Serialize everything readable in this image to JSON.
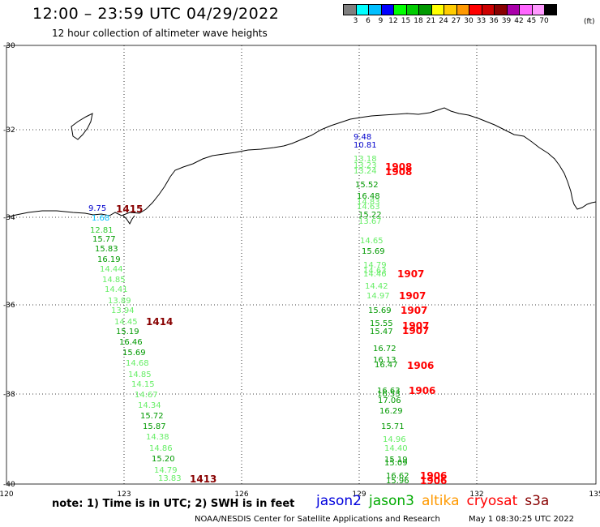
{
  "header": {
    "title": "12:00 – 23:59 UTC 04/29/2022",
    "subtitle": "12 hour collection of altimeter wave heights"
  },
  "color_scale": {
    "colors": [
      "#7f7f7f",
      "#00ffff",
      "#00bfff",
      "#0000ff",
      "#00ff00",
      "#00cc00",
      "#009900",
      "#ffff00",
      "#ffcc00",
      "#ff9900",
      "#ff0000",
      "#cc0000",
      "#880000",
      "#aa00aa",
      "#ff66ff",
      "#ff99ff",
      "#000000"
    ],
    "labels": [
      "3",
      "6",
      "9",
      "12",
      "15",
      "18",
      "21",
      "24",
      "27",
      "30",
      "33",
      "36",
      "39",
      "42",
      "45",
      "70"
    ],
    "unit": "(ft)"
  },
  "axes": {
    "lon_ticks": [
      "120",
      "123",
      "126",
      "129",
      "132",
      "135"
    ],
    "lat_ticks": [
      "-30",
      "-32",
      "-34",
      "-36",
      "-38",
      "-40"
    ]
  },
  "track_west": [
    {
      "text": "9.75",
      "color": "#0000cc"
    },
    {
      "text": "1.68",
      "color": "#00bfff"
    },
    {
      "text": "12.81",
      "color": "#33cc33"
    },
    {
      "text": "15.77",
      "color": "#009900"
    },
    {
      "text": "15.83",
      "color": "#009900"
    },
    {
      "text": "16.19",
      "color": "#009900"
    },
    {
      "text": "14.44",
      "color": "#66ee66"
    },
    {
      "text": "14.85",
      "color": "#66ee66"
    },
    {
      "text": "14.41",
      "color": "#66ee66"
    },
    {
      "text": "13.89",
      "color": "#66ee66"
    },
    {
      "text": "13.94",
      "color": "#66ee66"
    },
    {
      "text": "14.45",
      "color": "#66ee66"
    },
    {
      "text": "15.19",
      "color": "#009900"
    },
    {
      "text": "16.46",
      "color": "#009900"
    },
    {
      "text": "15.69",
      "color": "#009900"
    },
    {
      "text": "14.68",
      "color": "#66ee66"
    },
    {
      "text": "14.85",
      "color": "#66ee66"
    },
    {
      "text": "14.15",
      "color": "#66ee66"
    },
    {
      "text": "14.67",
      "color": "#66ee66"
    },
    {
      "text": "14.34",
      "color": "#66ee66"
    },
    {
      "text": "15.72",
      "color": "#009900"
    },
    {
      "text": "15.87",
      "color": "#009900"
    },
    {
      "text": "14.38",
      "color": "#66ee66"
    },
    {
      "text": "14.86",
      "color": "#66ee66"
    },
    {
      "text": "15.20",
      "color": "#009900"
    },
    {
      "text": "14.79",
      "color": "#66ee66"
    },
    {
      "text": "13.83",
      "color": "#66ee66"
    }
  ],
  "track_east": [
    {
      "text": "9.48",
      "color": "#0000cc"
    },
    {
      "text": "10.81",
      "color": "#0000cc"
    },
    {
      "text": "13.18",
      "color": "#66ee66"
    },
    {
      "text": "13.23",
      "color": "#66ee66"
    },
    {
      "text": "13.24",
      "color": "#66ee66"
    },
    {
      "text": "15.52",
      "color": "#009900"
    },
    {
      "text": "16.48",
      "color": "#009900"
    },
    {
      "text": "14.83",
      "color": "#66ee66"
    },
    {
      "text": "14.63",
      "color": "#66ee66"
    },
    {
      "text": "15.22",
      "color": "#009900"
    },
    {
      "text": "13.67",
      "color": "#66ee66"
    },
    {
      "text": "14.65",
      "color": "#66ee66"
    },
    {
      "text": "15.69",
      "color": "#009900"
    },
    {
      "text": "14.79",
      "color": "#66ee66"
    },
    {
      "text": "14.63",
      "color": "#66ee66"
    },
    {
      "text": "14.46",
      "color": "#66ee66"
    },
    {
      "text": "14.42",
      "color": "#66ee66"
    },
    {
      "text": "14.97",
      "color": "#66ee66"
    },
    {
      "text": "15.69",
      "color": "#009900"
    },
    {
      "text": "15.55",
      "color": "#009900"
    },
    {
      "text": "15.47",
      "color": "#009900"
    },
    {
      "text": "16.72",
      "color": "#009900"
    },
    {
      "text": "16.13",
      "color": "#009900"
    },
    {
      "text": "16.47",
      "color": "#009900"
    },
    {
      "text": "16.63",
      "color": "#009900"
    },
    {
      "text": "16.53",
      "color": "#009900"
    },
    {
      "text": "17.06",
      "color": "#009900"
    },
    {
      "text": "16.29",
      "color": "#009900"
    },
    {
      "text": "15.71",
      "color": "#009900"
    },
    {
      "text": "14.96",
      "color": "#66ee66"
    },
    {
      "text": "14.40",
      "color": "#66ee66"
    },
    {
      "text": "15.19",
      "color": "#009900"
    },
    {
      "text": "15.09",
      "color": "#009900"
    },
    {
      "text": "16.62",
      "color": "#009900"
    },
    {
      "text": "15.96",
      "color": "#009900"
    }
  ],
  "time_labels": [
    {
      "text": "1415",
      "color": "#880000"
    },
    {
      "text": "1414",
      "color": "#880000"
    },
    {
      "text": "1413",
      "color": "#880000"
    },
    {
      "text": "1908",
      "color": "#ff0000"
    },
    {
      "text": "1908",
      "color": "#ff0000"
    },
    {
      "text": "1907",
      "color": "#ff0000"
    },
    {
      "text": "1907",
      "color": "#ff0000"
    },
    {
      "text": "1907",
      "color": "#ff0000"
    },
    {
      "text": "1907",
      "color": "#ff0000"
    },
    {
      "text": "1907",
      "color": "#ff0000"
    },
    {
      "text": "1906",
      "color": "#ff0000"
    },
    {
      "text": "1906",
      "color": "#ff0000"
    },
    {
      "text": "1906",
      "color": "#ff0000"
    },
    {
      "text": "1906",
      "color": "#ff0000"
    }
  ],
  "footer": {
    "note": "note:  1) Time is in UTC;  2) SWH is in feet",
    "satellites": [
      {
        "name": "jason2",
        "color": "#0000dd"
      },
      {
        "name": "jason3",
        "color": "#00aa00"
      },
      {
        "name": "altika",
        "color": "#ff9900"
      },
      {
        "name": "cryosat",
        "color": "#ff0000"
      },
      {
        "name": "s3a",
        "color": "#880000"
      }
    ],
    "credit": "NOAA/NESDIS Center for Satellite Applications and Research",
    "generated": "May  1 08:30:25 UTC 2022"
  }
}
